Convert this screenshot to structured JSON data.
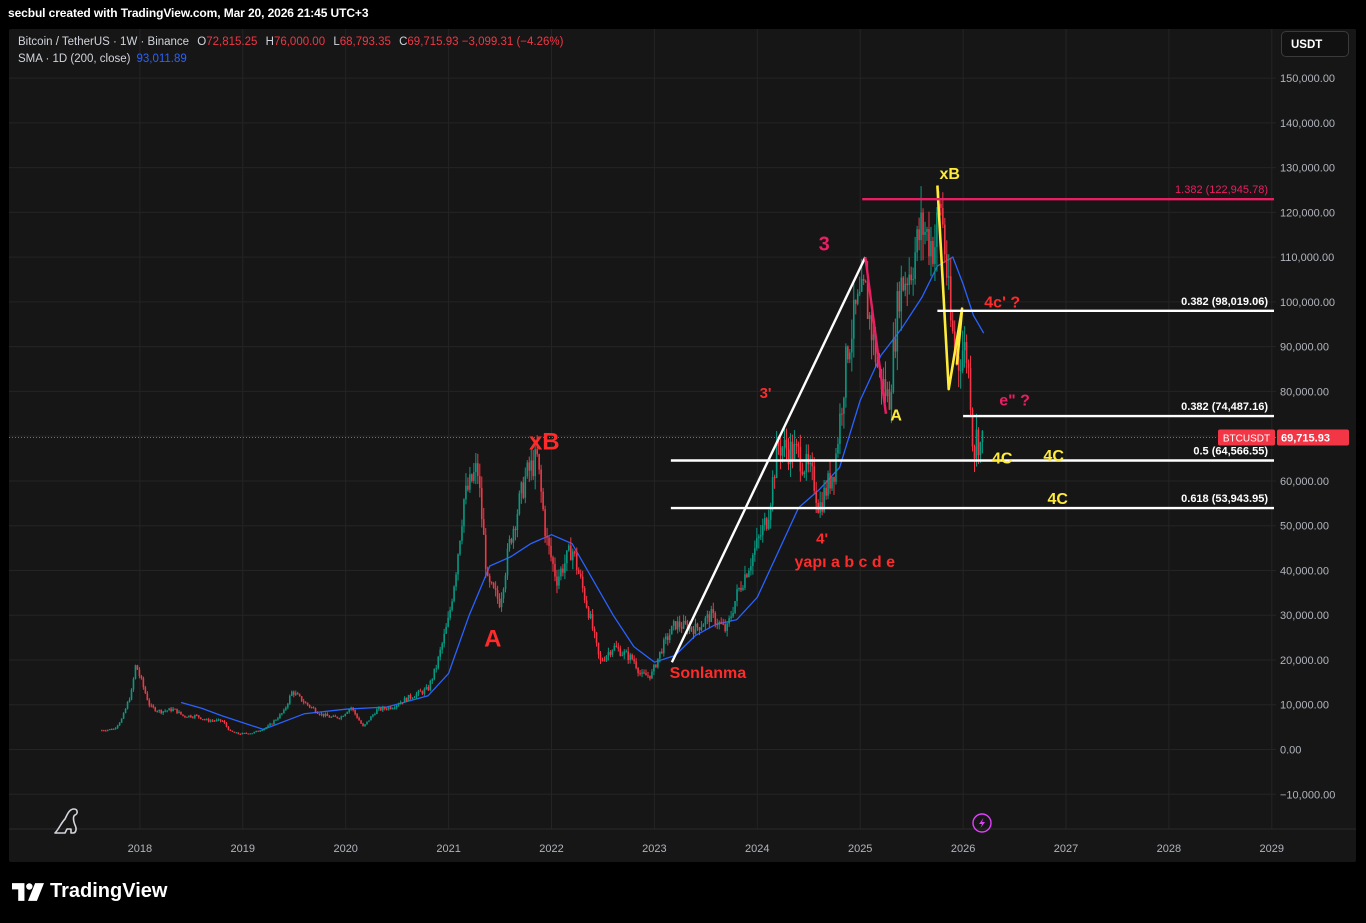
{
  "credit": "secbul created with TradingView.com, Mar 20, 2026 21:45 UTC+3",
  "legend": {
    "symbol": "Bitcoin / TetherUS · 1W · Binance",
    "o_label": "O",
    "o": "72,815.25",
    "h_label": "H",
    "h": "76,000.00",
    "l_label": "L",
    "l": "68,793.35",
    "c_label": "C",
    "c": "69,715.93",
    "change": "−3,099.31 (−4.26%)",
    "sma_label": "SMA · 1D (200, close)",
    "sma_value": "93,011.89"
  },
  "currency_button": "USDT",
  "brand": "TradingView",
  "colors": {
    "background": "#161616",
    "up": "#089981",
    "down": "#f23645",
    "sma": "#2962ff",
    "annot_red": "#ff2a2a",
    "annot_pink": "#e91e63",
    "annot_yellow": "#ffeb3b"
  },
  "chart_data": {
    "type": "candlestick",
    "interval": "1W",
    "x_ticks": [
      "2018",
      "2019",
      "2020",
      "2021",
      "2022",
      "2023",
      "2024",
      "2025",
      "2026",
      "2027",
      "2028",
      "2029"
    ],
    "y_ticks": [
      "150,000.00",
      "140,000.00",
      "130,000.00",
      "120,000.00",
      "110,000.00",
      "100,000.00",
      "90,000.00",
      "80,000.00",
      "70,000.00",
      "60,000.00",
      "50,000.00",
      "40,000.00",
      "30,000.00",
      "20,000.00",
      "10,000.00",
      "0.00",
      "−10,000.00"
    ],
    "ylim": [
      -12000,
      158000
    ],
    "last_price": {
      "label": "BTCUSDT",
      "value": 69715.93,
      "text": "69,715.93"
    },
    "price_path": [
      [
        2017.63,
        4300
      ],
      [
        2017.75,
        4600
      ],
      [
        2017.83,
        7000
      ],
      [
        2017.92,
        13000
      ],
      [
        2017.96,
        19000
      ],
      [
        2018.04,
        13500
      ],
      [
        2018.1,
        9500
      ],
      [
        2018.2,
        8500
      ],
      [
        2018.33,
        9000
      ],
      [
        2018.42,
        7500
      ],
      [
        2018.55,
        7500
      ],
      [
        2018.65,
        6500
      ],
      [
        2018.8,
        6400
      ],
      [
        2018.88,
        4000
      ],
      [
        2018.96,
        3500
      ],
      [
        2019.1,
        3700
      ],
      [
        2019.25,
        5200
      ],
      [
        2019.4,
        8500
      ],
      [
        2019.48,
        13000
      ],
      [
        2019.6,
        10500
      ],
      [
        2019.75,
        8000
      ],
      [
        2019.85,
        7200
      ],
      [
        2019.95,
        7200
      ],
      [
        2020.05,
        9500
      ],
      [
        2020.17,
        5000
      ],
      [
        2020.3,
        8800
      ],
      [
        2020.45,
        9500
      ],
      [
        2020.6,
        11500
      ],
      [
        2020.8,
        13500
      ],
      [
        2020.88,
        18500
      ],
      [
        2021.0,
        29000
      ],
      [
        2021.07,
        40000
      ],
      [
        2021.15,
        56000
      ],
      [
        2021.28,
        63000
      ],
      [
        2021.38,
        37000
      ],
      [
        2021.5,
        33000
      ],
      [
        2021.6,
        47000
      ],
      [
        2021.75,
        61000
      ],
      [
        2021.86,
        65000
      ],
      [
        2021.95,
        47000
      ],
      [
        2022.05,
        38000
      ],
      [
        2022.2,
        45000
      ],
      [
        2022.37,
        30000
      ],
      [
        2022.47,
        19500
      ],
      [
        2022.6,
        23000
      ],
      [
        2022.8,
        20000
      ],
      [
        2022.87,
        16500
      ],
      [
        2022.97,
        16600
      ],
      [
        2023.08,
        23000
      ],
      [
        2023.2,
        28000
      ],
      [
        2023.4,
        27000
      ],
      [
        2023.55,
        30000
      ],
      [
        2023.7,
        26500
      ],
      [
        2023.8,
        34500
      ],
      [
        2023.95,
        43000
      ],
      [
        2024.1,
        52000
      ],
      [
        2024.2,
        68000
      ],
      [
        2024.4,
        66000
      ],
      [
        2024.55,
        60000
      ],
      [
        2024.6,
        54000
      ],
      [
        2024.75,
        63000
      ],
      [
        2024.88,
        90000
      ],
      [
        2024.96,
        98000
      ],
      [
        2025.05,
        102000
      ],
      [
        2025.18,
        84000
      ],
      [
        2025.28,
        78000
      ],
      [
        2025.38,
        103000
      ],
      [
        2025.5,
        108000
      ],
      [
        2025.6,
        117000
      ],
      [
        2025.72,
        112000
      ],
      [
        2025.78,
        123000
      ],
      [
        2025.83,
        110000
      ],
      [
        2025.88,
        95000
      ],
      [
        2025.95,
        86000
      ],
      [
        2026.0,
        90000
      ],
      [
        2026.04,
        88000
      ],
      [
        2026.08,
        77000
      ],
      [
        2026.1,
        65000
      ],
      [
        2026.13,
        70000
      ],
      [
        2026.17,
        68000
      ],
      [
        2026.2,
        69716
      ]
    ],
    "sma_path": [
      [
        2018.4,
        10500
      ],
      [
        2018.6,
        9200
      ],
      [
        2018.8,
        7500
      ],
      [
        2019.2,
        4500
      ],
      [
        2019.6,
        8000
      ],
      [
        2020.0,
        9000
      ],
      [
        2020.4,
        9500
      ],
      [
        2020.8,
        12000
      ],
      [
        2021.0,
        17000
      ],
      [
        2021.2,
        30000
      ],
      [
        2021.4,
        41000
      ],
      [
        2021.6,
        43000
      ],
      [
        2021.8,
        46000
      ],
      [
        2022.0,
        48000
      ],
      [
        2022.2,
        46000
      ],
      [
        2022.4,
        38000
      ],
      [
        2022.6,
        30000
      ],
      [
        2022.8,
        23000
      ],
      [
        2023.0,
        19500
      ],
      [
        2023.2,
        21000
      ],
      [
        2023.4,
        25500
      ],
      [
        2023.6,
        28000
      ],
      [
        2023.8,
        29000
      ],
      [
        2024.0,
        34000
      ],
      [
        2024.2,
        44000
      ],
      [
        2024.4,
        54000
      ],
      [
        2024.6,
        58000
      ],
      [
        2024.8,
        63000
      ],
      [
        2025.0,
        78000
      ],
      [
        2025.2,
        88000
      ],
      [
        2025.4,
        94000
      ],
      [
        2025.6,
        101000
      ],
      [
        2025.75,
        108000
      ],
      [
        2025.9,
        110000
      ],
      [
        2026.0,
        104000
      ],
      [
        2026.1,
        97000
      ],
      [
        2026.2,
        93012
      ]
    ],
    "horizontal_levels": [
      {
        "label": "1.382 (122,945.78)",
        "value": 122945.78,
        "x_start": 2025.02,
        "color": "#e91e63"
      },
      {
        "label": "0.382 (98,019.06)",
        "value": 98019.06,
        "x_start": 2025.75,
        "color": "#ffffff"
      },
      {
        "label": "0.382 (74,487.16)",
        "value": 74487.16,
        "x_start": 2026.0,
        "color": "#ffffff"
      },
      {
        "label": "0.5 (64,566.55)",
        "value": 64566.55,
        "x_start": 2023.16,
        "color": "#ffffff"
      },
      {
        "label": "0.618 (53,943.95)",
        "value": 53943.95,
        "x_start": 2023.16,
        "color": "#ffffff"
      }
    ],
    "trend_lines": [
      {
        "from": [
          2023.17,
          19500
        ],
        "to": [
          2025.05,
          110000
        ],
        "color": "#ffffff"
      },
      {
        "from": [
          2025.05,
          110000
        ],
        "to": [
          2025.25,
          75000
        ],
        "color": "#e91e63"
      }
    ],
    "yellow_path": [
      [
        2025.75,
        126000
      ],
      [
        2025.86,
        80500
      ],
      [
        2025.99,
        98500
      ],
      [
        2025.94,
        86000
      ]
    ],
    "annotations": [
      {
        "text": "A",
        "x": 2021.43,
        "y": 23000,
        "color": "#ff2a2a",
        "size": 24
      },
      {
        "text": "xB",
        "x": 2021.93,
        "y": 67000,
        "color": "#ff2a2a",
        "size": 24
      },
      {
        "text": "Sonlanma",
        "x": 2023.52,
        "y": 16000,
        "color": "#ff2a2a",
        "size": 16
      },
      {
        "text": "3'",
        "x": 2024.08,
        "y": 78500,
        "color": "#ff2a2a",
        "size": 15
      },
      {
        "text": "4'",
        "x": 2024.63,
        "y": 46000,
        "color": "#ff2a2a",
        "size": 15
      },
      {
        "text": "yapı a b c d e",
        "x": 2024.85,
        "y": 40800,
        "color": "#ff2a2a",
        "size": 16
      },
      {
        "text": "3",
        "x": 2024.65,
        "y": 111500,
        "color": "#e91e63",
        "size": 20
      },
      {
        "text": "A",
        "x": 2025.35,
        "y": 73500,
        "color": "#ffeb3b",
        "size": 16
      },
      {
        "text": "xB",
        "x": 2025.87,
        "y": 127500,
        "color": "#ffeb3b",
        "size": 16
      },
      {
        "text": "4c' ?",
        "x": 2026.38,
        "y": 98700,
        "color": "#ff2a2a",
        "size": 16
      },
      {
        "text": "e\" ?",
        "x": 2026.5,
        "y": 76800,
        "color": "#e91e63",
        "size": 16
      },
      {
        "text": "4C",
        "x": 2026.38,
        "y": 63900,
        "color": "#ffeb3b",
        "size": 16
      },
      {
        "text": "4C",
        "x": 2026.88,
        "y": 64500,
        "color": "#ffeb3b",
        "size": 16
      },
      {
        "text": "4C",
        "x": 2026.92,
        "y": 54800,
        "color": "#ffeb3b",
        "size": 16
      }
    ]
  }
}
